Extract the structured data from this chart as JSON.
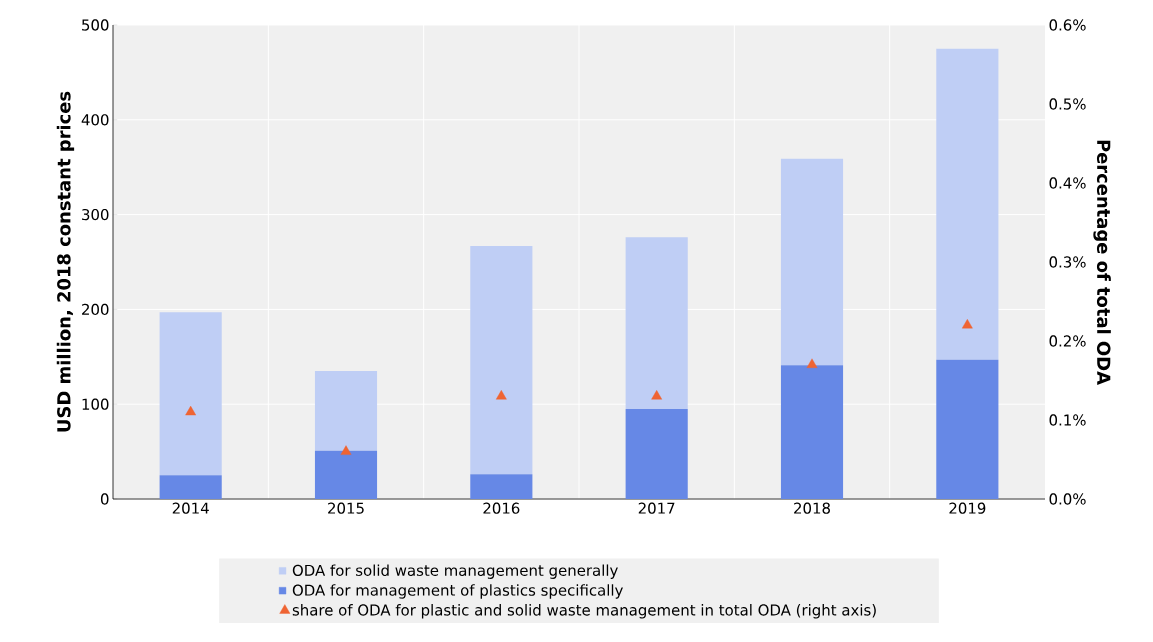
{
  "chart_data": {
    "type": "bar",
    "stacked": true,
    "categories": [
      "2014",
      "2015",
      "2016",
      "2017",
      "2018",
      "2019"
    ],
    "series": [
      {
        "name": "ODA for management of plastics specifically",
        "color": "#6688e6",
        "values": [
          25,
          51,
          26,
          95,
          141,
          147
        ]
      },
      {
        "name": "ODA for solid waste management generally",
        "color": "#bfcef5",
        "values": [
          172,
          84,
          241,
          181,
          218,
          328
        ]
      },
      {
        "name": "share of ODA for plastic and solid waste management in total ODA (right axis)",
        "type": "scatter",
        "axis": "y2",
        "marker": "triangle",
        "color": "#ef6433",
        "values": [
          0.11,
          0.06,
          0.13,
          0.13,
          0.17,
          0.22
        ]
      }
    ],
    "ylabel": "USD million, 2018 constant prices",
    "y2label": "Percentage of total ODA",
    "ylim": [
      0,
      500
    ],
    "yticks": [
      0,
      100,
      200,
      300,
      400,
      500
    ],
    "y2lim": [
      0,
      0.6
    ],
    "y2ticks": [
      {
        "value": 0,
        "label": "0.0%"
      },
      {
        "value": 0.1,
        "label": "0.1%"
      },
      {
        "value": 0.2,
        "label": "0.2%"
      },
      {
        "value": 0.3,
        "label": "0.3%"
      },
      {
        "value": 0.4,
        "label": "0.4%"
      },
      {
        "value": 0.5,
        "label": "0.5%"
      },
      {
        "value": 0.6,
        "label": "0.6%"
      }
    ],
    "grid": true,
    "legend": "bottom"
  }
}
